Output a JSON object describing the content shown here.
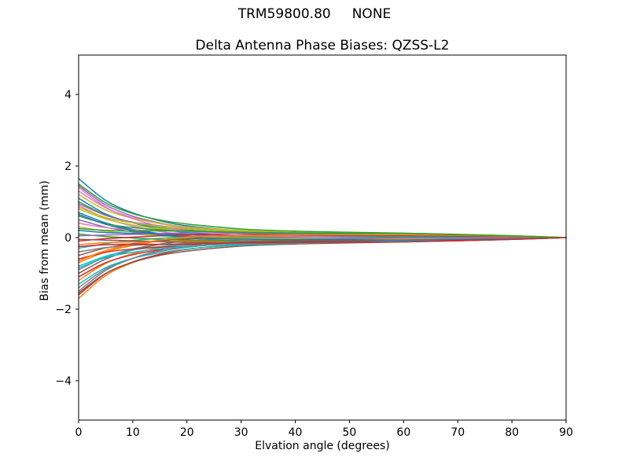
{
  "figure": {
    "background": "#ffffff",
    "suptitle": "TRM59800.80     NONE"
  },
  "chart_data": {
    "type": "line",
    "title": "Delta Antenna Phase Biases: QZSS-L2",
    "xlabel": "Elvation angle (degrees)",
    "ylabel": "Bias from mean (mm)",
    "xlim": [
      0,
      90
    ],
    "ylim": [
      -5.1,
      5.1
    ],
    "xticks": [
      0,
      10,
      20,
      30,
      40,
      50,
      60,
      70,
      80,
      90
    ],
    "yticks": [
      -4,
      -2,
      0,
      2,
      4
    ],
    "grid": false,
    "legend": "none",
    "axis_color": "#000000",
    "line_width": 1.5,
    "palette": [
      "#1f77b4",
      "#ff7f0e",
      "#2ca02c",
      "#d62728",
      "#9467bd",
      "#8c564b",
      "#e377c2",
      "#7f7f7f",
      "#bcbd22",
      "#17becf"
    ],
    "x": [
      0,
      5,
      10,
      15,
      20,
      30,
      40,
      50,
      60,
      70,
      80,
      90
    ],
    "series": [
      {
        "values": [
          1.65,
          1.04,
          0.69,
          0.47,
          0.33,
          0.19,
          0.12,
          0.09,
          0.07,
          0.05,
          0.03,
          0
        ]
      },
      {
        "values": [
          -1.7,
          -1.06,
          -0.7,
          -0.47,
          -0.33,
          -0.18,
          -0.12,
          -0.08,
          -0.06,
          -0.04,
          -0.02,
          0
        ]
      },
      {
        "values": [
          1.5,
          0.97,
          0.67,
          0.49,
          0.38,
          0.24,
          0.18,
          0.15,
          0.12,
          0.09,
          0.05,
          0
        ]
      },
      {
        "values": [
          -1.6,
          -1.01,
          -0.68,
          -0.47,
          -0.33,
          -0.2,
          -0.13,
          -0.1,
          -0.08,
          -0.06,
          -0.03,
          0
        ]
      },
      {
        "values": [
          1.45,
          0.91,
          0.6,
          0.41,
          0.28,
          0.15,
          0.1,
          0.06,
          0.05,
          0.04,
          0.02,
          0
        ]
      },
      {
        "values": [
          -1.55,
          -1.0,
          -0.69,
          -0.5,
          -0.38,
          -0.24,
          -0.18,
          -0.15,
          -0.12,
          -0.09,
          -0.05,
          0
        ]
      },
      {
        "values": [
          1.3,
          0.83,
          0.56,
          0.39,
          0.28,
          0.17,
          0.12,
          0.09,
          0.08,
          0.06,
          0.03,
          0
        ]
      },
      {
        "values": [
          -1.4,
          -0.88,
          -0.58,
          -0.39,
          -0.27,
          -0.15,
          -0.1,
          -0.06,
          -0.05,
          -0.04,
          -0.02,
          0
        ]
      },
      {
        "values": [
          1.2,
          0.77,
          0.54,
          0.4,
          0.3,
          0.2,
          0.15,
          0.12,
          0.1,
          0.07,
          0.05,
          0
        ]
      },
      {
        "values": [
          -1.3,
          -0.84,
          -0.58,
          -0.43,
          -0.32,
          -0.21,
          -0.16,
          -0.12,
          -0.11,
          -0.08,
          -0.05,
          0
        ]
      },
      {
        "values": [
          1.1,
          0.66,
          0.41,
          0.25,
          0.14,
          0.04,
          0.02,
          -0.01,
          -0.02,
          -0.02,
          -0.01,
          0
        ]
      },
      {
        "values": [
          -1.2,
          -0.72,
          -0.45,
          -0.27,
          -0.15,
          -0.05,
          -0.02,
          0.01,
          0.02,
          0.02,
          0.01,
          0
        ]
      },
      {
        "values": [
          1.0,
          0.63,
          0.42,
          0.29,
          0.21,
          0.13,
          0.08,
          0.06,
          0.05,
          0.03,
          0.02,
          0
        ]
      },
      {
        "values": [
          -1.1,
          -0.7,
          -0.48,
          -0.34,
          -0.25,
          -0.15,
          -0.11,
          -0.08,
          -0.07,
          -0.05,
          -0.03,
          0
        ]
      },
      {
        "values": [
          0.95,
          0.62,
          0.43,
          0.33,
          0.25,
          0.17,
          0.13,
          0.1,
          0.09,
          0.06,
          0.04,
          0
        ]
      },
      {
        "values": [
          -1.0,
          -0.6,
          -0.35,
          -0.19,
          -0.09,
          -0.01,
          0.02,
          0.03,
          0.04,
          0.04,
          0.02,
          0
        ]
      },
      {
        "values": [
          0.9,
          0.54,
          0.32,
          0.17,
          0.08,
          0.01,
          -0.01,
          -0.03,
          -0.03,
          -0.03,
          -0.01,
          0
        ]
      },
      {
        "values": [
          -0.9,
          -0.54,
          -0.32,
          -0.18,
          -0.09,
          -0.02,
          0.0,
          0.02,
          0.03,
          0.03,
          0.01,
          0
        ]
      },
      {
        "values": [
          0.8,
          0.52,
          0.35,
          0.25,
          0.19,
          0.12,
          0.08,
          0.06,
          0.06,
          0.04,
          0.02,
          0
        ]
      },
      {
        "values": [
          -0.8,
          -0.52,
          -0.35,
          -0.25,
          -0.19,
          -0.12,
          -0.08,
          -0.06,
          -0.06,
          -0.04,
          -0.02,
          0
        ]
      },
      {
        "values": [
          0.7,
          0.41,
          0.23,
          0.11,
          0.04,
          -0.02,
          -0.03,
          -0.04,
          -0.05,
          -0.04,
          -0.03,
          0
        ]
      },
      {
        "values": [
          -0.7,
          -0.4,
          -0.22,
          -0.09,
          -0.02,
          0.04,
          0.05,
          0.06,
          0.07,
          0.05,
          0.04,
          0
        ]
      },
      {
        "values": [
          0.6,
          0.39,
          0.28,
          0.22,
          0.17,
          0.12,
          0.09,
          0.08,
          0.06,
          0.05,
          0.02,
          0
        ]
      },
      {
        "values": [
          -0.6,
          -0.41,
          -0.32,
          -0.27,
          -0.23,
          -0.17,
          -0.14,
          -0.12,
          -0.11,
          -0.09,
          -0.05,
          0
        ]
      },
      {
        "values": [
          0.5,
          0.29,
          0.16,
          0.08,
          0.03,
          -0.02,
          -0.02,
          -0.03,
          -0.04,
          -0.03,
          -0.02,
          0
        ]
      },
      {
        "values": [
          -0.5,
          -0.29,
          -0.17,
          -0.09,
          -0.04,
          0.01,
          0.01,
          0.02,
          0.03,
          0.02,
          0.02,
          0
        ]
      },
      {
        "values": [
          0.4,
          0.28,
          0.22,
          0.19,
          0.17,
          0.13,
          0.11,
          0.09,
          0.09,
          0.06,
          0.04,
          0
        ]
      },
      {
        "values": [
          -0.4,
          -0.28,
          -0.22,
          -0.19,
          -0.17,
          -0.13,
          -0.11,
          -0.09,
          -0.09,
          -0.06,
          -0.04,
          0
        ]
      },
      {
        "values": [
          0.3,
          0.18,
          0.1,
          0.05,
          0.01,
          -0.01,
          -0.02,
          -0.02,
          -0.02,
          -0.02,
          -0.01,
          0
        ]
      },
      {
        "values": [
          -0.3,
          -0.17,
          -0.08,
          -0.02,
          0.02,
          0.04,
          0.04,
          0.05,
          0.04,
          0.04,
          0.02,
          0
        ]
      },
      {
        "values": [
          0.2,
          0.14,
          0.12,
          0.1,
          0.09,
          0.08,
          0.06,
          0.06,
          0.05,
          0.04,
          0.02,
          0
        ]
      },
      {
        "values": [
          -0.2,
          -0.14,
          -0.12,
          -0.11,
          -0.1,
          -0.09,
          -0.07,
          -0.07,
          -0.05,
          -0.04,
          -0.02,
          0
        ]
      },
      {
        "values": [
          0.1,
          0.03,
          -0.01,
          -0.05,
          -0.07,
          -0.08,
          -0.07,
          -0.07,
          -0.07,
          -0.05,
          -0.03,
          0
        ]
      },
      {
        "values": [
          -0.1,
          -0.03,
          0.01,
          0.05,
          0.07,
          0.08,
          0.07,
          0.07,
          0.07,
          0.05,
          0.03,
          0
        ]
      },
      {
        "values": [
          0.05,
          0.07,
          0.09,
          0.11,
          0.13,
          0.12,
          0.1,
          0.1,
          0.09,
          0.07,
          0.04,
          0
        ]
      },
      {
        "values": [
          -0.05,
          -0.07,
          -0.09,
          -0.11,
          -0.13,
          -0.12,
          -0.1,
          -0.1,
          -0.09,
          -0.07,
          -0.04,
          0
        ]
      },
      {
        "values": [
          1.4,
          0.85,
          0.53,
          0.32,
          0.19,
          0.07,
          0.03,
          0.0,
          -0.01,
          -0.01,
          -0.01,
          0
        ]
      },
      {
        "values": [
          -1.5,
          -0.92,
          -0.58,
          -0.36,
          -0.22,
          -0.09,
          -0.05,
          -0.02,
          0.0,
          0.0,
          0.0,
          0
        ]
      },
      {
        "values": [
          0.85,
          0.56,
          0.41,
          0.31,
          0.25,
          0.17,
          0.13,
          0.12,
          0.1,
          0.08,
          0.05,
          0
        ]
      },
      {
        "values": [
          -0.85,
          -0.56,
          -0.41,
          -0.31,
          -0.25,
          -0.17,
          -0.13,
          -0.12,
          -0.1,
          -0.08,
          -0.05,
          0
        ]
      },
      {
        "values": [
          0.65,
          0.37,
          0.2,
          0.08,
          0.01,
          -0.04,
          -0.06,
          -0.06,
          -0.07,
          -0.05,
          -0.04,
          0
        ]
      },
      {
        "values": [
          -0.65,
          -0.36,
          -0.19,
          -0.07,
          0.01,
          0.05,
          0.07,
          0.08,
          0.08,
          0.06,
          0.04,
          0
        ]
      },
      {
        "values": [
          0.25,
          0.2,
          0.18,
          0.19,
          0.18,
          0.15,
          0.13,
          0.12,
          0.12,
          0.08,
          0.05,
          0
        ]
      },
      {
        "values": [
          -0.25,
          -0.2,
          -0.18,
          -0.19,
          -0.18,
          -0.15,
          -0.13,
          -0.12,
          -0.12,
          -0.08,
          -0.05,
          0
        ]
      }
    ]
  }
}
